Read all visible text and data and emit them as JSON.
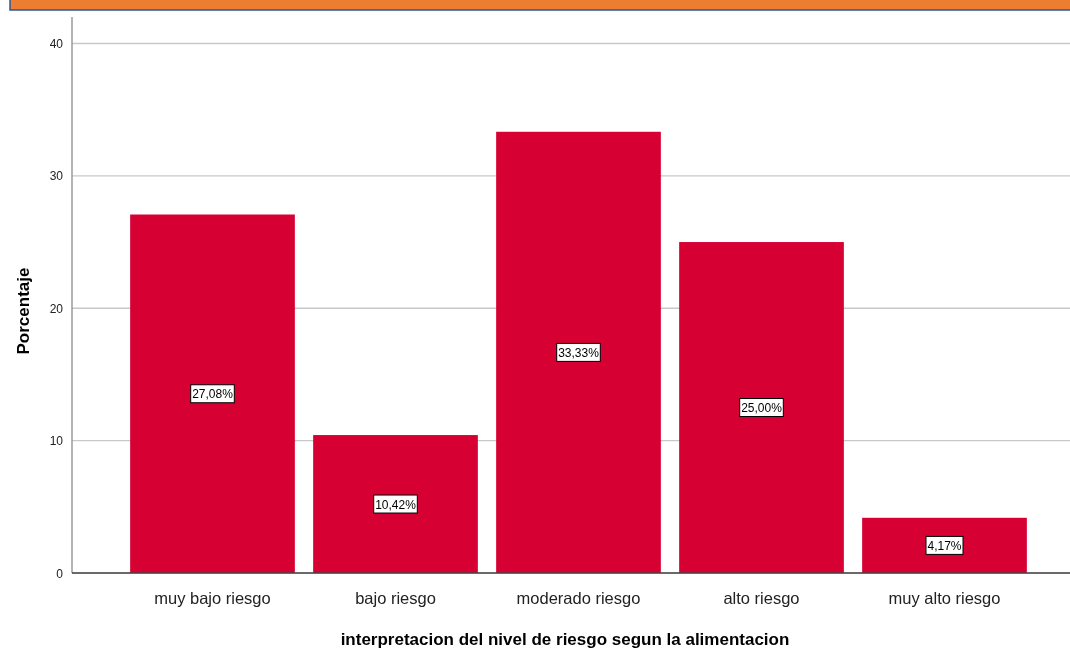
{
  "chart_data": {
    "type": "bar",
    "categories": [
      "muy bajo riesgo",
      "bajo riesgo",
      "moderado riesgo",
      "alto riesgo",
      "muy alto riesgo"
    ],
    "values": [
      27.08,
      10.42,
      33.33,
      25.0,
      4.17
    ],
    "color": "#d70033",
    "value_labels": [
      "27,08%",
      "10,42%",
      "33,33%",
      "25,00%",
      "4,17%"
    ],
    "xlabel": "interpretacion del nivel de riesgo segun la alimentacion",
    "ylabel": "Porcentaje",
    "ylim": [
      0,
      42
    ],
    "yticks": [
      0,
      10,
      20,
      30,
      40
    ],
    "grid": "y"
  }
}
